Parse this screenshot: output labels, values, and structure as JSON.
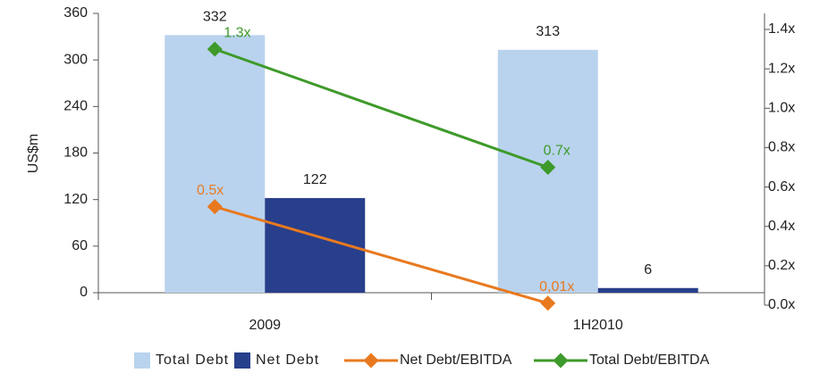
{
  "chart_data": {
    "type": "bar",
    "ylabel": "US$m",
    "categories": [
      "2009",
      "1H2010"
    ],
    "ylim": [
      0,
      360
    ],
    "yticks": [
      0,
      60,
      120,
      180,
      240,
      300,
      360
    ],
    "y2lim": [
      0,
      1.4
    ],
    "y2ticks": [
      {
        "value": 0,
        "label": "0.0x"
      },
      {
        "value": 0.2,
        "label": "0.2x"
      },
      {
        "value": 0.4,
        "label": "0.4x"
      },
      {
        "value": 0.6,
        "label": "0.6x"
      },
      {
        "value": 0.8,
        "label": "0.8x"
      },
      {
        "value": 1.0,
        "label": "1.0x"
      },
      {
        "value": 1.2,
        "label": "1.2x"
      },
      {
        "value": 1.4,
        "label": "1.4x"
      }
    ],
    "grid": false,
    "legend": "bottom",
    "series": [
      {
        "name": "Total Debt",
        "type": "bar",
        "color": "#b9d3ee",
        "values": [
          332,
          313
        ]
      },
      {
        "name": "Net Debt",
        "type": "bar",
        "color": "#283f8c",
        "values": [
          122,
          6
        ]
      },
      {
        "name": "Net Debt/EBITDA",
        "type": "line",
        "axis": "y2",
        "color": "#e8791f",
        "values": [
          0.5,
          0.01
        ],
        "value_labels": [
          "0.5x",
          "0,01x"
        ]
      },
      {
        "name": "Total Debt/EBITDA",
        "type": "line",
        "axis": "y2",
        "color": "#3e9a2a",
        "values": [
          1.3,
          0.7
        ],
        "value_labels": [
          "1.3x",
          "0.7x"
        ]
      }
    ]
  }
}
